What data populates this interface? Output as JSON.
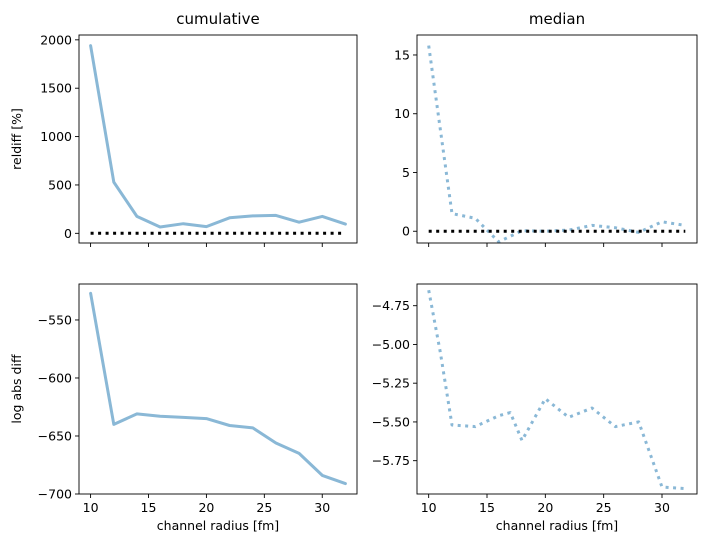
{
  "chart_data": [
    {
      "type": "line",
      "panel": "top-left",
      "title": "cumulative",
      "xlabel": "",
      "ylabel": "reldiff [%]",
      "xlim": [
        9,
        33
      ],
      "ylim": [
        -100,
        2050
      ],
      "xticks": [
        10,
        15,
        20,
        25,
        30
      ],
      "xtick_labels_visible": false,
      "yticks": [
        0,
        500,
        1000,
        1500,
        2000
      ],
      "ytick_labels": [
        "0",
        "500",
        "1000",
        "1500",
        "2000"
      ],
      "grid": false,
      "series": [
        {
          "style": "solid",
          "color": "#8ab8d6",
          "x": [
            10,
            12,
            14,
            16,
            18,
            20,
            22,
            24,
            26,
            28,
            30,
            32
          ],
          "y": [
            1940,
            530,
            175,
            65,
            100,
            70,
            160,
            180,
            185,
            115,
            175,
            95
          ]
        },
        {
          "style": "dotted",
          "color": "#000000",
          "x": [
            10,
            32
          ],
          "y": [
            0,
            0
          ]
        }
      ]
    },
    {
      "type": "line",
      "panel": "top-right",
      "title": "median",
      "xlabel": "",
      "ylabel": "",
      "xlim": [
        9,
        33
      ],
      "ylim": [
        -1.0,
        16.7
      ],
      "xticks": [
        10,
        15,
        20,
        25,
        30
      ],
      "xtick_labels_visible": false,
      "yticks": [
        0,
        5,
        10,
        15
      ],
      "ytick_labels": [
        "0",
        "5",
        "10",
        "15"
      ],
      "grid": false,
      "series": [
        {
          "style": "dotted",
          "color": "#8ab8d6",
          "x": [
            10,
            12,
            14,
            16,
            18,
            20,
            22,
            24,
            26,
            28,
            30,
            32
          ],
          "y": [
            15.8,
            1.5,
            1.1,
            -0.9,
            0.05,
            0.0,
            0.1,
            0.5,
            0.3,
            -0.1,
            0.8,
            0.5
          ]
        },
        {
          "style": "dotted",
          "color": "#000000",
          "x": [
            10,
            32
          ],
          "y": [
            0,
            0
          ]
        }
      ]
    },
    {
      "type": "line",
      "panel": "bottom-left",
      "title": "",
      "xlabel": "channel radius [fm]",
      "ylabel": "log abs diff",
      "xlim": [
        9,
        33
      ],
      "ylim": [
        -700,
        -519
      ],
      "xticks": [
        10,
        15,
        20,
        25,
        30
      ],
      "xtick_labels": [
        "10",
        "15",
        "20",
        "25",
        "30"
      ],
      "yticks": [
        -700,
        -650,
        -600,
        -550
      ],
      "ytick_labels": [
        "−700",
        "−650",
        "−600",
        "−550"
      ],
      "grid": false,
      "series": [
        {
          "style": "solid",
          "color": "#8ab8d6",
          "x": [
            10,
            12,
            14,
            16,
            18,
            20,
            22,
            24,
            26,
            28,
            30,
            32
          ],
          "y": [
            -527,
            -640,
            -631,
            -633,
            -634,
            -635,
            -641,
            -643,
            -656,
            -665,
            -684,
            -691
          ]
        }
      ]
    },
    {
      "type": "line",
      "panel": "bottom-right",
      "title": "",
      "xlabel": "channel radius [fm]",
      "ylabel": "",
      "xlim": [
        9,
        33
      ],
      "ylim": [
        -5.965,
        -4.61
      ],
      "xticks": [
        10,
        15,
        20,
        25,
        30
      ],
      "xtick_labels": [
        "10",
        "15",
        "20",
        "25",
        "30"
      ],
      "yticks": [
        -5.75,
        -5.5,
        -5.25,
        -5.0,
        -4.75
      ],
      "ytick_labels": [
        "−5.75",
        "−5.50",
        "−5.25",
        "−5.00",
        "−4.75"
      ],
      "grid": false,
      "series": [
        {
          "style": "dotted",
          "color": "#8ab8d6",
          "x": [
            10,
            11,
            12,
            14,
            16,
            17,
            18,
            20,
            22,
            24,
            26,
            28,
            30,
            32
          ],
          "y": [
            -4.65,
            -5.05,
            -5.52,
            -5.53,
            -5.46,
            -5.44,
            -5.62,
            -5.35,
            -5.47,
            -5.41,
            -5.53,
            -5.5,
            -5.92,
            -5.93
          ]
        }
      ]
    }
  ]
}
